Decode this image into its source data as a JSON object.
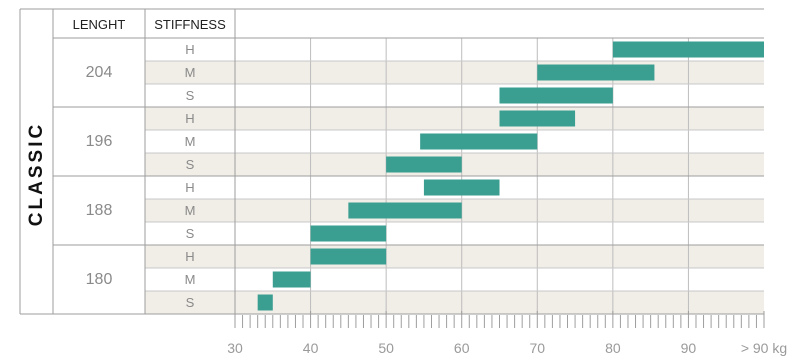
{
  "chart_data": {
    "type": "bar",
    "orientation": "horizontal-range",
    "title": "CLASSIC",
    "columns": [
      "LENGHT",
      "STIFFNESS"
    ],
    "x_ticks": [
      "30",
      "40",
      "50",
      "60",
      "70",
      "80",
      "90",
      "> 90 kg"
    ],
    "x_range": [
      30,
      100
    ],
    "bar_color": "#3a9e91",
    "row_band_color": "#f1ede7",
    "groups": [
      {
        "length": "204",
        "rows": [
          {
            "stiffness": "H",
            "from": 80,
            "to": 100
          },
          {
            "stiffness": "M",
            "from": 70,
            "to": 85.5
          },
          {
            "stiffness": "S",
            "from": 65,
            "to": 80
          }
        ]
      },
      {
        "length": "196",
        "rows": [
          {
            "stiffness": "H",
            "from": 65,
            "to": 75
          },
          {
            "stiffness": "M",
            "from": 54.5,
            "to": 70
          },
          {
            "stiffness": "S",
            "from": 50,
            "to": 60
          }
        ]
      },
      {
        "length": "188",
        "rows": [
          {
            "stiffness": "H",
            "from": 55,
            "to": 65
          },
          {
            "stiffness": "M",
            "from": 45,
            "to": 60
          },
          {
            "stiffness": "S",
            "from": 40,
            "to": 50
          }
        ]
      },
      {
        "length": "180",
        "rows": [
          {
            "stiffness": "H",
            "from": 40,
            "to": 50
          },
          {
            "stiffness": "M",
            "from": 35,
            "to": 40
          },
          {
            "stiffness": "S",
            "from": 33,
            "to": 35
          }
        ]
      }
    ]
  }
}
